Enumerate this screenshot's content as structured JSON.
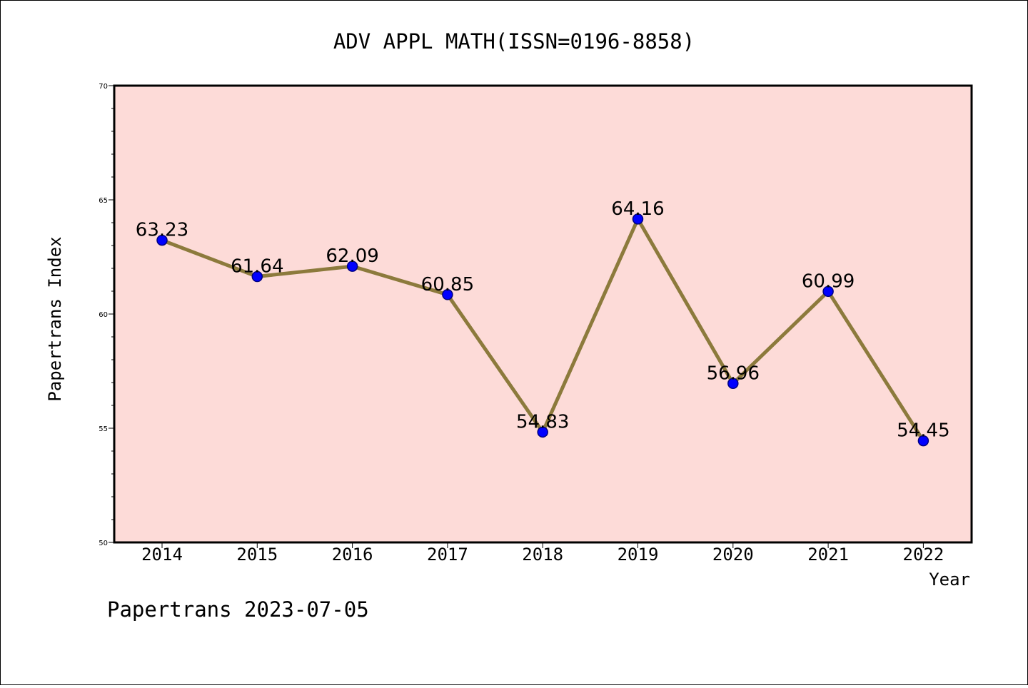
{
  "chart_data": {
    "type": "line",
    "title": "ADV APPL MATH(ISSN=0196-8858)",
    "xlabel": "Year",
    "ylabel": "Papertrans Index",
    "categories": [
      "2014",
      "2015",
      "2016",
      "2017",
      "2018",
      "2019",
      "2020",
      "2021",
      "2022"
    ],
    "series": [
      {
        "values": [
          63.23,
          61.64,
          62.09,
          60.85,
          54.83,
          64.16,
          56.96,
          60.99,
          54.45
        ],
        "labels": [
          "63.23",
          "61.64",
          "62.09",
          "60.85",
          "54.83",
          "64.16",
          "56.96",
          "60.99",
          "54.45"
        ]
      }
    ],
    "ylim": [
      50,
      70
    ],
    "yticks": [
      50,
      55,
      60,
      65,
      70
    ],
    "ytick_labels": [
      "50",
      "55",
      "60",
      "65",
      "70"
    ],
    "grid": false,
    "footer": "Papertrans 2023-07-05",
    "colors": {
      "plot_background": "#fddbd8",
      "line": "#8c7a3c",
      "marker_fill": "#0000ff",
      "marker_edge": "#000080"
    }
  }
}
